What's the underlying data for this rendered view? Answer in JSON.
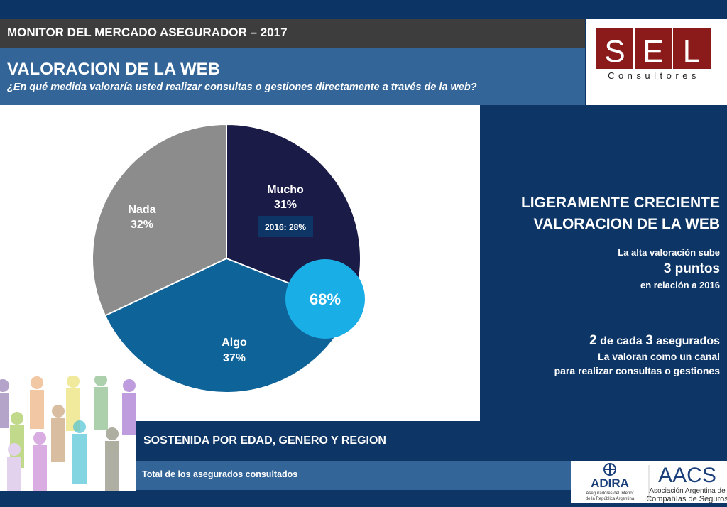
{
  "header": {
    "title": "MONITOR DEL MERCADO ASEGURADOR – 2017"
  },
  "section": {
    "title": "VALORACION DE LA WEB",
    "question": "¿En qué medida valoraría usted realizar consultas o gestiones directamente a través de la web?"
  },
  "logo": {
    "letters": [
      "S",
      "E",
      "L"
    ],
    "subtitle": "Consultores",
    "color": "#8b1a1a"
  },
  "chart_data": {
    "type": "pie",
    "slices": [
      {
        "label": "Mucho",
        "value": 31,
        "value_label": "31%",
        "color": "#1a1b47"
      },
      {
        "label": "Algo",
        "value": 37,
        "value_label": "37%",
        "color": "#0e6399"
      },
      {
        "label": "Nada",
        "value": 32,
        "value_label": "32%",
        "color": "#8c8c8c"
      }
    ],
    "annotations": {
      "previous": "2016: 28%",
      "highlight": "68%",
      "highlight_color": "#1aaee6"
    }
  },
  "insights": {
    "headline_line1": "LIGERAMENTE CRECIENTE",
    "headline_line2": "VALORACION DE LA WEB",
    "p1_line1": "La alta valoración sube",
    "p1_big": "3 puntos",
    "p1_line3": "en relación a 2016",
    "p2_n1": "2",
    "p2_mid": " de cada ",
    "p2_n2": "3",
    "p2_end": " asegurados",
    "p2_line2": "La valoran como un canal",
    "p2_line3": "para realizar consultas o gestiones"
  },
  "footer": {
    "sostenida": "SOSTENIDA POR EDAD, GENERO Y REGION",
    "total": "Total de los asegurados consultados"
  },
  "partners": {
    "adira_name": "ADIRA",
    "adira_sub1": "Aseguradores del Interior",
    "adira_sub2": "de la República Argentina",
    "aacs_name": "AACS",
    "aacs_sub1": "Asociación Argentina de",
    "aacs_sub2": "Compañías de Seguros"
  }
}
